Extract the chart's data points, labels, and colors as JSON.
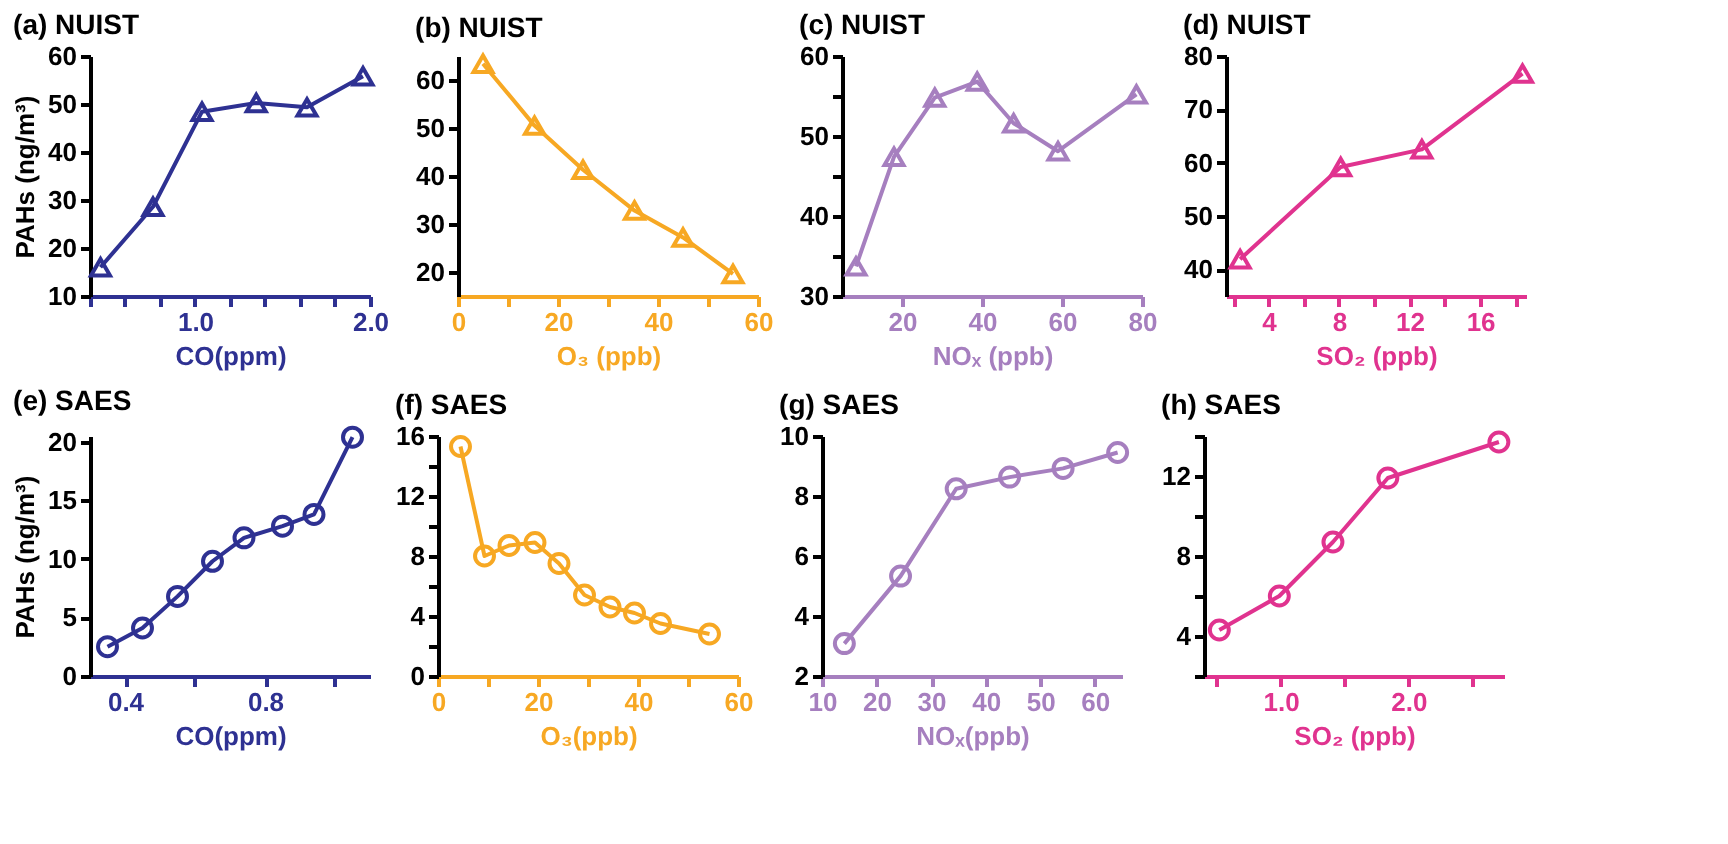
{
  "chart_data": [
    {
      "type": "line",
      "title": "(a) NUIST",
      "xlabel": "CO(ppm)",
      "ylabel": "PAHs (ng/m³)",
      "marker": "triangle",
      "grid": false,
      "x": [
        0.46,
        0.76,
        1.04,
        1.35,
        1.64,
        1.96
      ],
      "series": [
        {
          "color": "#2e3192",
          "values": [
            16,
            28.6,
            48.4,
            50.2,
            49.3,
            55.8
          ]
        }
      ],
      "xlim": [
        0.4,
        2.0
      ],
      "xticks": [
        {
          "value": 0.4,
          "label": null
        },
        {
          "value": 0.6,
          "label": null
        },
        {
          "value": 0.8,
          "label": null
        },
        {
          "value": 1.0,
          "label": "1.0"
        },
        {
          "value": 1.2,
          "label": null
        },
        {
          "value": 1.4,
          "label": null
        },
        {
          "value": 1.6,
          "label": null
        },
        {
          "value": 1.8,
          "label": null
        },
        {
          "value": 2.0,
          "label": "2.0"
        }
      ],
      "ylim": [
        10,
        60
      ],
      "yticks": [
        10,
        20,
        30,
        40,
        50,
        60
      ]
    },
    {
      "type": "line",
      "title": "(b) NUIST",
      "xlabel": "O₃ (ppb)",
      "marker": "triangle",
      "grid": false,
      "x": [
        5,
        15.3,
        25,
        35.3,
        45,
        55
      ],
      "series": [
        {
          "color": "#f7a823",
          "values": [
            63.4,
            50.5,
            41.3,
            32.8,
            27.2,
            19.6
          ]
        }
      ],
      "xlim": [
        0,
        60
      ],
      "xticks": [
        0,
        {
          "value": 10,
          "label": null
        },
        20,
        {
          "value": 30,
          "label": null
        },
        40,
        {
          "value": 50,
          "label": null
        },
        60
      ],
      "ylim": [
        15,
        65
      ],
      "yticks": [
        20,
        30,
        40,
        50,
        60
      ]
    },
    {
      "type": "line",
      "title": "(c) NUIST",
      "xlabel": "NOₓ (ppb)",
      "marker": "triangle",
      "grid": false,
      "x": [
        8.5,
        18,
        28.2,
        38.8,
        47.9,
        59,
        78.6
      ],
      "series": [
        {
          "color": "#a67fbf",
          "values": [
            33.7,
            47.4,
            54.8,
            56.8,
            51.6,
            48.1,
            55.2
          ]
        }
      ],
      "xlim": [
        5,
        80
      ],
      "xticks": [
        20,
        40,
        60,
        80
      ],
      "ylim": [
        30,
        60
      ],
      "yticks": [
        30,
        {
          "value": 35,
          "label": null
        },
        40,
        {
          "value": 45,
          "label": null
        },
        50,
        {
          "value": 55,
          "label": null
        },
        60
      ]
    },
    {
      "type": "line",
      "title": "(d) NUIST",
      "xlabel": "SO₂ (ppb)",
      "marker": "triangle",
      "grid": false,
      "x": [
        2.4,
        8.1,
        12.7,
        18.4
      ],
      "series": [
        {
          "color": "#e0338f",
          "values": [
            41.9,
            59.2,
            62.5,
            76.7
          ]
        }
      ],
      "xlim": [
        1.6,
        18.6
      ],
      "xticks": [
        {
          "value": 2,
          "label": null
        },
        4,
        {
          "value": 6,
          "label": null
        },
        8,
        {
          "value": 10,
          "label": null
        },
        12,
        {
          "value": 14,
          "label": null
        },
        16,
        {
          "value": 18,
          "label": null
        }
      ],
      "ylim": [
        35,
        80
      ],
      "yticks": [
        40,
        50,
        60,
        70,
        80
      ]
    },
    {
      "type": "line",
      "title": "(e) SAES",
      "xlabel": "CO(ppm)",
      "ylabel": "PAHs (ng/m³)",
      "marker": "circle",
      "grid": false,
      "x": [
        0.35,
        0.45,
        0.55,
        0.65,
        0.74,
        0.85,
        0.94,
        1.05
      ],
      "series": [
        {
          "color": "#2e3192",
          "values": [
            2.5,
            4.1,
            6.8,
            9.8,
            11.8,
            12.8,
            13.8,
            20.4
          ]
        }
      ],
      "xlim": [
        0.3,
        1.1
      ],
      "xticks": [
        0.4,
        {
          "value": 0.6,
          "label": null
        },
        0.8,
        {
          "value": 1.0,
          "label": null
        }
      ],
      "ylim": [
        0,
        20.5
      ],
      "yticks": [
        0,
        5,
        10,
        15,
        20
      ]
    },
    {
      "type": "line",
      "title": "(f) SAES",
      "xlabel": "O₃(ppb)",
      "marker": "circle",
      "grid": false,
      "x": [
        4.5,
        9.3,
        14.2,
        19.4,
        24.2,
        29.3,
        34.4,
        39.3,
        44.5,
        54.3
      ],
      "series": [
        {
          "color": "#f7a823",
          "values": [
            15.3,
            8.0,
            8.7,
            8.9,
            7.5,
            5.4,
            4.6,
            4.2,
            3.5,
            2.8
          ]
        }
      ],
      "xlim": [
        0,
        60
      ],
      "xticks": [
        0,
        {
          "value": 10,
          "label": null
        },
        20,
        {
          "value": 30,
          "label": null
        },
        40,
        {
          "value": 50,
          "label": null
        },
        60
      ],
      "ylim": [
        0,
        16
      ],
      "yticks": [
        0,
        {
          "value": 2,
          "label": null
        },
        4,
        {
          "value": 6,
          "label": null
        },
        8,
        {
          "value": 10,
          "label": null
        },
        12,
        {
          "value": 14,
          "label": null
        },
        16
      ]
    },
    {
      "type": "line",
      "title": "(g) SAES",
      "xlabel": "NOₓ(ppb)",
      "marker": "circle",
      "grid": false,
      "x": [
        14.1,
        24.4,
        34.6,
        44.4,
        54.2,
        64.2
      ],
      "series": [
        {
          "color": "#a67fbf",
          "values": [
            3.08,
            5.33,
            8.24,
            8.63,
            8.92,
            9.45
          ]
        }
      ],
      "xlim": [
        10,
        65
      ],
      "xticks": [
        10,
        20,
        30,
        40,
        50,
        60
      ],
      "ylim": [
        2,
        10
      ],
      "yticks": [
        2,
        4,
        6,
        8,
        10
      ]
    },
    {
      "type": "line",
      "title": "(h) SAES",
      "xlabel": "SO₂ (ppb)",
      "marker": "circle",
      "grid": false,
      "x": [
        0.52,
        0.99,
        1.41,
        1.84,
        2.71
      ],
      "series": [
        {
          "color": "#e0338f",
          "values": [
            4.3,
            6.0,
            8.7,
            11.9,
            13.7
          ]
        }
      ],
      "xlim": [
        0.4,
        2.75
      ],
      "xticks": [
        {
          "value": 0.5,
          "label": null
        },
        {
          "value": 1.0,
          "label": "1.0"
        },
        {
          "value": 1.5,
          "label": null
        },
        {
          "value": 2.0,
          "label": "2.0"
        },
        {
          "value": 2.5,
          "label": null
        }
      ],
      "ylim": [
        2,
        14
      ],
      "yticks": [
        {
          "value": 2,
          "label": null
        },
        4,
        {
          "value": 6,
          "label": null
        },
        8,
        {
          "value": 10,
          "label": null
        },
        12,
        {
          "value": 14,
          "label": null
        }
      ]
    }
  ]
}
